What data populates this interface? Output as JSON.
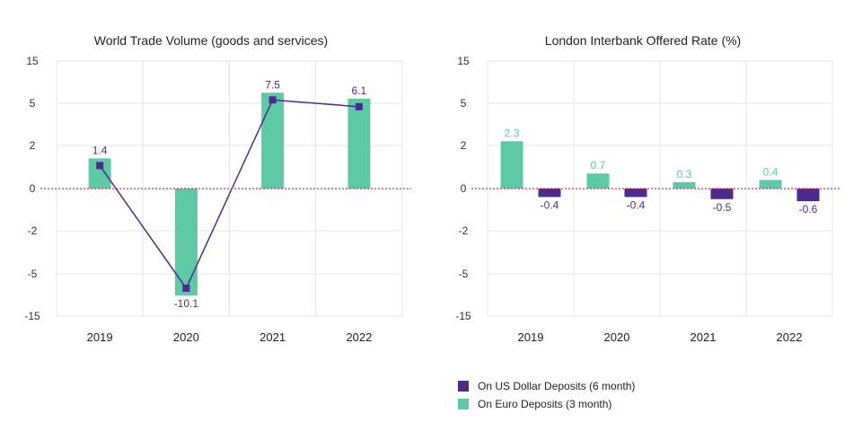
{
  "colors": {
    "euro": "#5dcaa5",
    "usd": "#4e2a8e",
    "grid": "#e4e4e4",
    "zero_line": "#e03030",
    "text": "#222222",
    "axis_text": "#333333"
  },
  "chart_data": [
    {
      "type": "bar",
      "title": "World Trade Volume (goods and services)",
      "categories": [
        "2019",
        "2020",
        "2021",
        "2022"
      ],
      "y_ticks": [
        "15",
        "5",
        "2",
        "0",
        "-2",
        "-5",
        "-15"
      ],
      "y_tick_values": [
        15,
        5,
        2,
        0,
        -2,
        -5,
        -15
      ],
      "series": [
        {
          "values": [
            1.4,
            -10.1,
            7.5,
            6.1
          ],
          "data_labels": [
            "1.4",
            "-10.1",
            "7.5",
            "6.1"
          ],
          "color": "#5dcaa5",
          "render": "bar"
        },
        {
          "values": [
            1.4,
            -10.1,
            7.5,
            6.1
          ],
          "color": "#4e2a8e",
          "render": "line-markers"
        }
      ],
      "grid": true
    },
    {
      "type": "bar",
      "title": "London Interbank Offered Rate (%)",
      "categories": [
        "2019",
        "2020",
        "2021",
        "2022"
      ],
      "y_ticks": [
        "15",
        "5",
        "2",
        "0",
        "-2",
        "-5",
        "-15"
      ],
      "y_tick_values": [
        15,
        5,
        2,
        0,
        -2,
        -5,
        -15
      ],
      "series": [
        {
          "name": "On Euro Deposits (3 month)",
          "values": [
            2.3,
            0.7,
            0.3,
            0.4
          ],
          "data_labels": [
            "2.3",
            "0.7",
            "0.3",
            "0.4"
          ],
          "color": "#5dcaa5"
        },
        {
          "name": "On US Dollar Deposits (6 month)",
          "values": [
            -0.4,
            -0.4,
            -0.5,
            -0.6
          ],
          "data_labels": [
            "-0.4",
            "-0.4",
            "-0.5",
            "-0.6"
          ],
          "color": "#4e2a8e"
        }
      ],
      "legend": "bottom-left",
      "grid": true
    }
  ],
  "legend": {
    "items": [
      {
        "label": "On US Dollar Deposits (6 month)",
        "color": "#4e2a8e"
      },
      {
        "label": "On Euro Deposits (3 month)",
        "color": "#5dcaa5"
      }
    ]
  }
}
